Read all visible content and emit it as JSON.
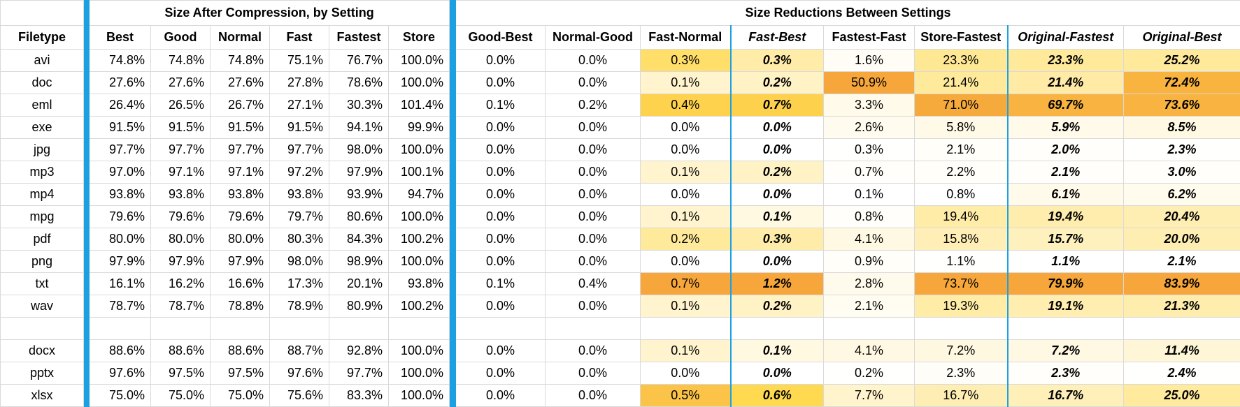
{
  "header": {
    "group_left": "Size After Compression, by Setting",
    "group_right": "Size Reductions Between Settings"
  },
  "columns": [
    "Filetype",
    "Best",
    "Good",
    "Normal",
    "Fast",
    "Fastest",
    "Store",
    "Good-Best",
    "Normal-Good",
    "Fast-Normal",
    "Fast-Best",
    "Fastest-Fast",
    "Store-Fastest",
    "Original-Fastest",
    "Original-Best"
  ],
  "groups": [
    {
      "rows": [
        [
          "avi",
          "74.8%",
          "74.8%",
          "74.8%",
          "75.1%",
          "76.7%",
          "100.0%",
          "0.0%",
          "0.0%",
          "0.3%",
          "0.3%",
          "1.6%",
          "23.3%",
          "23.3%",
          "25.2%"
        ],
        [
          "doc",
          "27.6%",
          "27.6%",
          "27.6%",
          "27.8%",
          "78.6%",
          "100.0%",
          "0.0%",
          "0.0%",
          "0.1%",
          "0.2%",
          "50.9%",
          "21.4%",
          "21.4%",
          "72.4%"
        ],
        [
          "eml",
          "26.4%",
          "26.5%",
          "26.7%",
          "27.1%",
          "30.3%",
          "101.4%",
          "0.1%",
          "0.2%",
          "0.4%",
          "0.7%",
          "3.3%",
          "71.0%",
          "69.7%",
          "73.6%"
        ],
        [
          "exe",
          "91.5%",
          "91.5%",
          "91.5%",
          "91.5%",
          "94.1%",
          "99.9%",
          "0.0%",
          "0.0%",
          "0.0%",
          "0.0%",
          "2.6%",
          "5.8%",
          "5.9%",
          "8.5%"
        ],
        [
          "jpg",
          "97.7%",
          "97.7%",
          "97.7%",
          "97.7%",
          "98.0%",
          "100.0%",
          "0.0%",
          "0.0%",
          "0.0%",
          "0.0%",
          "0.3%",
          "2.1%",
          "2.0%",
          "2.3%"
        ],
        [
          "mp3",
          "97.0%",
          "97.1%",
          "97.1%",
          "97.2%",
          "97.9%",
          "100.1%",
          "0.0%",
          "0.0%",
          "0.1%",
          "0.2%",
          "0.7%",
          "2.2%",
          "2.1%",
          "3.0%"
        ],
        [
          "mp4",
          "93.8%",
          "93.8%",
          "93.8%",
          "93.8%",
          "93.9%",
          "94.7%",
          "0.0%",
          "0.0%",
          "0.0%",
          "0.0%",
          "0.1%",
          "0.8%",
          "6.1%",
          "6.2%"
        ],
        [
          "mpg",
          "79.6%",
          "79.6%",
          "79.6%",
          "79.7%",
          "80.6%",
          "100.0%",
          "0.0%",
          "0.0%",
          "0.1%",
          "0.1%",
          "0.8%",
          "19.4%",
          "19.4%",
          "20.4%"
        ],
        [
          "pdf",
          "80.0%",
          "80.0%",
          "80.0%",
          "80.3%",
          "84.3%",
          "100.2%",
          "0.0%",
          "0.0%",
          "0.2%",
          "0.3%",
          "4.1%",
          "15.8%",
          "15.7%",
          "20.0%"
        ],
        [
          "png",
          "97.9%",
          "97.9%",
          "97.9%",
          "98.0%",
          "98.9%",
          "100.0%",
          "0.0%",
          "0.0%",
          "0.0%",
          "0.0%",
          "0.9%",
          "1.1%",
          "1.1%",
          "2.1%"
        ],
        [
          "txt",
          "16.1%",
          "16.2%",
          "16.6%",
          "17.3%",
          "20.1%",
          "93.8%",
          "0.1%",
          "0.4%",
          "0.7%",
          "1.2%",
          "2.8%",
          "73.7%",
          "79.9%",
          "83.9%"
        ],
        [
          "wav",
          "78.7%",
          "78.7%",
          "78.8%",
          "78.9%",
          "80.9%",
          "100.2%",
          "0.0%",
          "0.0%",
          "0.1%",
          "0.2%",
          "2.1%",
          "19.3%",
          "19.1%",
          "21.3%"
        ]
      ]
    },
    {
      "rows": [
        [
          "docx",
          "88.6%",
          "88.6%",
          "88.6%",
          "88.7%",
          "92.8%",
          "100.0%",
          "0.0%",
          "0.0%",
          "0.1%",
          "0.1%",
          "4.1%",
          "7.2%",
          "7.2%",
          "11.4%"
        ],
        [
          "pptx",
          "97.6%",
          "97.5%",
          "97.5%",
          "97.6%",
          "97.7%",
          "100.0%",
          "0.0%",
          "0.0%",
          "0.0%",
          "0.0%",
          "0.2%",
          "2.3%",
          "2.3%",
          "2.4%"
        ],
        [
          "xlsx",
          "75.0%",
          "75.0%",
          "75.0%",
          "75.6%",
          "83.3%",
          "100.0%",
          "0.0%",
          "0.0%",
          "0.5%",
          "0.6%",
          "7.7%",
          "16.7%",
          "16.7%",
          "25.0%"
        ]
      ]
    }
  ]
}
